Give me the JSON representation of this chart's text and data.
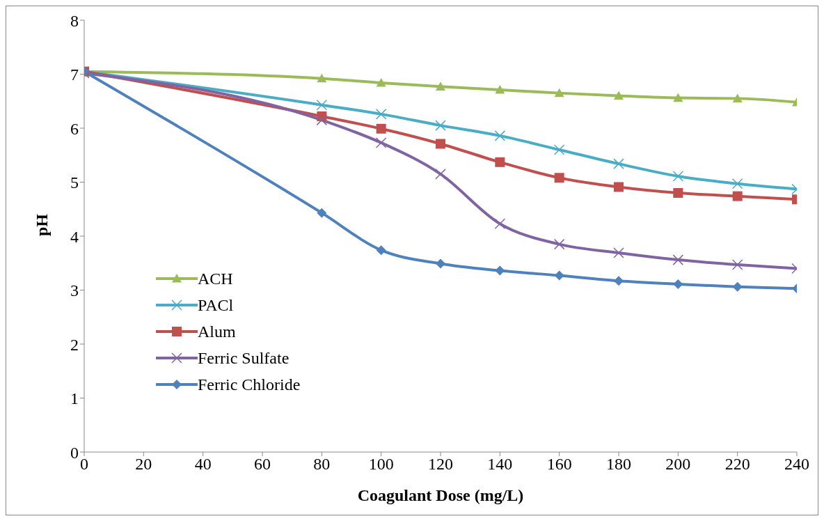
{
  "chart_data": {
    "type": "line",
    "xlabel": "Coagulant Dose (mg/L)",
    "ylabel": "pH",
    "x": [
      0,
      80,
      100,
      120,
      140,
      160,
      180,
      200,
      220,
      240
    ],
    "xlim": [
      0,
      240
    ],
    "xticks": [
      0,
      20,
      40,
      60,
      80,
      100,
      120,
      140,
      160,
      180,
      200,
      220,
      240
    ],
    "ylim": [
      0,
      8
    ],
    "yticks": [
      0,
      1,
      2,
      3,
      4,
      5,
      6,
      7,
      8
    ],
    "grid": false,
    "legend": "left",
    "series": [
      {
        "name": "ACH",
        "color": "#9bbb59",
        "marker": "triangle",
        "values": [
          7.05,
          6.92,
          6.84,
          6.77,
          6.71,
          6.65,
          6.6,
          6.56,
          6.55,
          6.48
        ]
      },
      {
        "name": "PACl",
        "color": "#4bacc6",
        "marker": "cross",
        "values": [
          7.05,
          6.43,
          6.26,
          6.05,
          5.86,
          5.6,
          5.34,
          5.11,
          4.97,
          4.87
        ]
      },
      {
        "name": "Alum",
        "color": "#c0504d",
        "marker": "square",
        "values": [
          7.05,
          6.22,
          5.99,
          5.71,
          5.37,
          5.08,
          4.91,
          4.8,
          4.74,
          4.68
        ]
      },
      {
        "name": "Ferric Sulfate",
        "color": "#8064a2",
        "marker": "cross",
        "values": [
          7.02,
          6.15,
          5.73,
          5.15,
          4.23,
          3.85,
          3.69,
          3.56,
          3.47,
          3.4
        ]
      },
      {
        "name": "Ferric Chloride",
        "color": "#4f81bd",
        "marker": "diamond",
        "values": [
          7.05,
          4.43,
          3.74,
          3.49,
          3.36,
          3.27,
          3.17,
          3.11,
          3.06,
          3.03
        ]
      }
    ]
  }
}
